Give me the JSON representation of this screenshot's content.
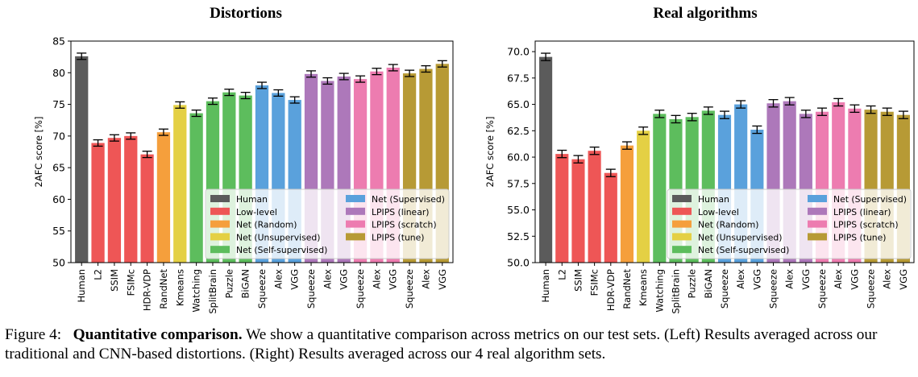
{
  "colors": {
    "Human": "#5b5b5b",
    "Low-level": "#ee5656",
    "Net (Random)": "#f59f3c",
    "Net (Unsupervised)": "#e4d044",
    "Net (Self-supervised)": "#5dbd5d",
    "Net (Supervised)": "#5aa1dc",
    "LPIPS (linear)": "#ad78ba",
    "LPIPS (scratch)": "#ed7cb0",
    "LPIPS (tune)": "#b79a35"
  },
  "chart_data": [
    {
      "type": "bar",
      "title": "Distortions",
      "ylabel": "2AFC score [%]",
      "ylim": [
        50,
        85
      ],
      "yticks": [
        50,
        55,
        60,
        65,
        70,
        75,
        80,
        85
      ],
      "ytick_labels": [
        "50",
        "55",
        "60",
        "65",
        "70",
        "75",
        "80",
        "85"
      ],
      "categories": [
        "Human",
        "L2",
        "SSIM",
        "FSIMc",
        "HDR-VDP",
        "RandNet",
        "Kmeans",
        "Watching",
        "SplitBrain",
        "Puzzle",
        "BiGAN",
        "Squeeze",
        "Alex",
        "VGG",
        "Squeeze",
        "Alex",
        "VGG",
        "Squeeze",
        "Alex",
        "VGG",
        "Squeeze",
        "Alex",
        "VGG"
      ],
      "groups": [
        "Human",
        "Low-level",
        "Low-level",
        "Low-level",
        "Low-level",
        "Net (Random)",
        "Net (Unsupervised)",
        "Net (Self-supervised)",
        "Net (Self-supervised)",
        "Net (Self-supervised)",
        "Net (Self-supervised)",
        "Net (Supervised)",
        "Net (Supervised)",
        "Net (Supervised)",
        "LPIPS (linear)",
        "LPIPS (linear)",
        "LPIPS (linear)",
        "LPIPS (scratch)",
        "LPIPS (scratch)",
        "LPIPS (scratch)",
        "LPIPS (tune)",
        "LPIPS (tune)",
        "LPIPS (tune)"
      ],
      "values": [
        82.6,
        68.9,
        69.7,
        70.0,
        67.1,
        70.6,
        74.9,
        73.6,
        75.5,
        76.9,
        76.4,
        78.0,
        76.8,
        75.7,
        79.8,
        78.7,
        79.4,
        79.0,
        80.2,
        80.8,
        79.9,
        80.6,
        81.4
      ],
      "errors": [
        0.5,
        0.5,
        0.5,
        0.5,
        0.5,
        0.5,
        0.5,
        0.5,
        0.5,
        0.5,
        0.5,
        0.5,
        0.5,
        0.5,
        0.5,
        0.5,
        0.5,
        0.5,
        0.5,
        0.5,
        0.5,
        0.5,
        0.5
      ],
      "legend": {
        "placement": "lower-right",
        "entries": [
          "Human",
          "Low-level",
          "Net (Random)",
          "Net (Unsupervised)",
          "Net (Self-supervised)",
          "Net (Supervised)",
          "LPIPS (linear)",
          "LPIPS (scratch)",
          "LPIPS (tune)"
        ]
      },
      "grid": false
    },
    {
      "type": "bar",
      "title": "Real algorithms",
      "ylabel": "2AFC score [%]",
      "ylim": [
        50,
        71
      ],
      "yticks": [
        50,
        52.5,
        55,
        57.5,
        60,
        62.5,
        65,
        67.5,
        70
      ],
      "ytick_labels": [
        "50.0",
        "52.5",
        "55.0",
        "57.5",
        "60.0",
        "62.5",
        "65.0",
        "67.5",
        "70.0"
      ],
      "categories": [
        "Human",
        "L2",
        "SSIM",
        "FSIMc",
        "HDR-VDP",
        "RandNet",
        "Kmeans",
        "Watching",
        "SplitBrain",
        "Puzzle",
        "BiGAN",
        "Squeeze",
        "Alex",
        "VGG",
        "Squeeze",
        "Alex",
        "VGG",
        "Squeeze",
        "Alex",
        "VGG",
        "Squeeze",
        "Alex",
        "VGG"
      ],
      "groups": [
        "Human",
        "Low-level",
        "Low-level",
        "Low-level",
        "Low-level",
        "Net (Random)",
        "Net (Unsupervised)",
        "Net (Self-supervised)",
        "Net (Self-supervised)",
        "Net (Self-supervised)",
        "Net (Self-supervised)",
        "Net (Supervised)",
        "Net (Supervised)",
        "Net (Supervised)",
        "LPIPS (linear)",
        "LPIPS (linear)",
        "LPIPS (linear)",
        "LPIPS (scratch)",
        "LPIPS (scratch)",
        "LPIPS (scratch)",
        "LPIPS (tune)",
        "LPIPS (tune)",
        "LPIPS (tune)"
      ],
      "values": [
        69.5,
        60.3,
        59.8,
        60.6,
        58.5,
        61.1,
        62.5,
        64.1,
        63.6,
        63.8,
        64.4,
        64.0,
        65.0,
        62.6,
        65.1,
        65.3,
        64.1,
        64.3,
        65.2,
        64.6,
        64.5,
        64.3,
        64.0
      ],
      "errors": [
        0.35,
        0.35,
        0.35,
        0.35,
        0.35,
        0.35,
        0.35,
        0.35,
        0.35,
        0.35,
        0.35,
        0.35,
        0.35,
        0.35,
        0.35,
        0.35,
        0.35,
        0.35,
        0.35,
        0.35,
        0.35,
        0.35,
        0.35
      ],
      "legend": {
        "placement": "lower-right",
        "entries": [
          "Human",
          "Low-level",
          "Net (Random)",
          "Net (Unsupervised)",
          "Net (Self-supervised)",
          "Net (Supervised)",
          "LPIPS (linear)",
          "LPIPS (scratch)",
          "LPIPS (tune)"
        ]
      },
      "grid": false
    }
  ],
  "caption": {
    "label": "Figure 4:",
    "bold": "Quantitative comparison.",
    "rest": "We show a quantitative comparison across metrics on our test sets. (Left) Results averaged across our traditional and CNN-based distortions. (Right) Results averaged across our 4 real algorithm sets."
  }
}
